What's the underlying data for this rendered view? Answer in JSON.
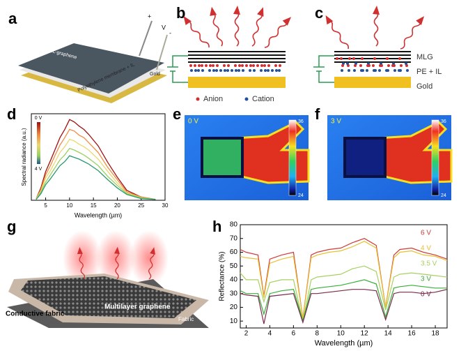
{
  "panels": {
    "a": {
      "label": "a",
      "texts": {
        "graphene": "ML-graphene",
        "membrane": "Polyethylene membrane + IL",
        "gold": "Gold",
        "voltage": "V",
        "plus": "+",
        "minus": "-"
      }
    },
    "b": {
      "label": "b",
      "legend": [
        "Anion",
        "Cation"
      ]
    },
    "c": {
      "label": "c",
      "layers": [
        "MLG",
        "PE + IL",
        "Gold"
      ]
    },
    "d": {
      "label": "d"
    },
    "e": {
      "label": "e",
      "voltage": "0 V",
      "scale_max": 36,
      "scale_min": 24
    },
    "f": {
      "label": "f",
      "voltage": "3 V",
      "scale_max": 36,
      "scale_min": 24
    },
    "g": {
      "label": "g",
      "texts": [
        "Multilayer graphene",
        "Conductive  fabric",
        "Fabric"
      ]
    },
    "h": {
      "label": "h"
    }
  },
  "chart_data": [
    {
      "type": "line",
      "xlabel": "Wavelength (µm)",
      "ylabel": "Spectral radiance (a.u.)",
      "x": [
        3,
        4,
        5,
        6,
        7,
        8,
        9,
        10,
        11,
        12,
        13,
        14,
        16,
        18,
        20,
        22,
        25,
        28
      ],
      "series": [
        {
          "color": "#a01010",
          "values": [
            0.02,
            0.15,
            0.35,
            0.48,
            0.62,
            0.76,
            0.86,
            0.98,
            0.95,
            0.9,
            0.86,
            0.8,
            0.66,
            0.46,
            0.28,
            0.12,
            0.04,
            0.01
          ]
        },
        {
          "color": "#f08a40",
          "values": [
            0.02,
            0.13,
            0.31,
            0.42,
            0.55,
            0.67,
            0.76,
            0.86,
            0.84,
            0.79,
            0.76,
            0.7,
            0.58,
            0.4,
            0.25,
            0.1,
            0.04,
            0.01
          ]
        },
        {
          "color": "#ecd870",
          "values": [
            0.02,
            0.11,
            0.27,
            0.36,
            0.47,
            0.58,
            0.65,
            0.74,
            0.72,
            0.68,
            0.65,
            0.61,
            0.5,
            0.35,
            0.21,
            0.09,
            0.03,
            0.01
          ]
        },
        {
          "color": "#98d060",
          "values": [
            0.01,
            0.1,
            0.22,
            0.31,
            0.4,
            0.49,
            0.55,
            0.63,
            0.61,
            0.58,
            0.55,
            0.51,
            0.42,
            0.29,
            0.18,
            0.08,
            0.03,
            0.01
          ]
        },
        {
          "color": "#2a9a70",
          "values": [
            0.01,
            0.08,
            0.19,
            0.26,
            0.34,
            0.42,
            0.47,
            0.54,
            0.52,
            0.5,
            0.47,
            0.44,
            0.36,
            0.25,
            0.15,
            0.07,
            0.02,
            0.01
          ]
        }
      ],
      "xlim": [
        2,
        30
      ],
      "ylim": [
        0,
        1.05
      ],
      "xticks": [
        5,
        10,
        15,
        20,
        25,
        30
      ],
      "colorbar_labels": [
        "0 V",
        "4 V"
      ]
    },
    {
      "type": "line",
      "xlabel": "Wavelength (µm)",
      "ylabel": "Reflectance (%)",
      "x": [
        1.5,
        2,
        3,
        3.5,
        4,
        5,
        6,
        6.8,
        7.5,
        8,
        9,
        10,
        11,
        12,
        13,
        13.8,
        14.5,
        15,
        16,
        17,
        18,
        19
      ],
      "series": [
        {
          "name": "6 V",
          "color": "#d03a3a",
          "values": [
            62,
            60,
            58,
            28,
            55,
            58,
            60,
            12,
            58,
            60,
            62,
            63,
            67,
            70,
            65,
            20,
            58,
            62,
            63,
            60,
            58,
            55
          ]
        },
        {
          "name": "4 V",
          "color": "#e8c030",
          "values": [
            57,
            56,
            55,
            27,
            52,
            55,
            57,
            12,
            56,
            58,
            60,
            61,
            64,
            68,
            63,
            20,
            56,
            60,
            61,
            58,
            57,
            54
          ]
        },
        {
          "name": "3.5 V",
          "color": "#a8d060",
          "values": [
            45,
            40,
            40,
            24,
            38,
            40,
            40,
            10,
            40,
            42,
            43,
            44,
            48,
            50,
            46,
            18,
            42,
            44,
            45,
            44,
            43,
            42
          ]
        },
        {
          "name": "3 V",
          "color": "#3aae3a",
          "values": [
            32,
            30,
            30,
            15,
            30,
            32,
            33,
            10,
            33,
            34,
            35,
            36,
            38,
            40,
            37,
            13,
            34,
            35,
            36,
            35,
            34,
            34
          ]
        },
        {
          "name": "0 V",
          "color": "#7a2a4a",
          "values": [
            30,
            29,
            28,
            8,
            28,
            29,
            30,
            9,
            30,
            30,
            31,
            32,
            33,
            33,
            32,
            11,
            30,
            31,
            31,
            30,
            31,
            33
          ]
        }
      ],
      "xlim": [
        1.5,
        19
      ],
      "ylim": [
        5,
        80
      ],
      "xticks": [
        2,
        4,
        6,
        8,
        10,
        12,
        14,
        16,
        18
      ],
      "yticks": [
        10,
        20,
        30,
        40,
        50,
        60,
        70,
        80
      ]
    }
  ]
}
